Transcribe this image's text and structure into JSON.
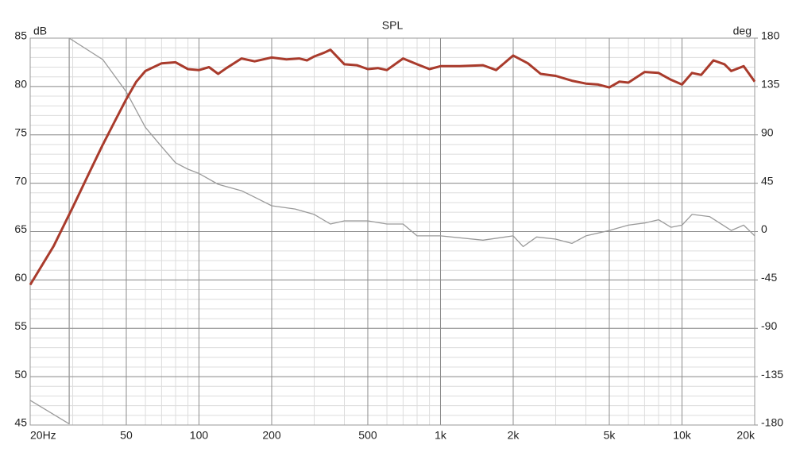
{
  "chart_data": {
    "type": "line",
    "title": "SPL",
    "y_label": "dB",
    "y2_label": "deg",
    "x_scale": "log",
    "grid": true,
    "minor_grid": true,
    "xlim": [
      20,
      20000
    ],
    "ylim": [
      45,
      85
    ],
    "y2lim": [
      -180,
      180
    ],
    "xticks": [
      {
        "value": 20,
        "label": "20Hz"
      },
      50,
      100,
      200,
      500,
      {
        "value": 1000,
        "label": "1k"
      },
      {
        "value": 2000,
        "label": "2k"
      },
      {
        "value": 5000,
        "label": "5k"
      },
      {
        "value": 10000,
        "label": "10k"
      },
      {
        "value": 20000,
        "label": "20k"
      }
    ],
    "yticks": [
      45,
      50,
      55,
      60,
      65,
      70,
      75,
      80,
      85
    ],
    "y2ticks": [
      -180,
      -135,
      -90,
      -45,
      0,
      45,
      90,
      135,
      180
    ],
    "series": [
      {
        "color": "#a93b2c",
        "axis": "y",
        "x": [
          20,
          25,
          30,
          35,
          40,
          45,
          50,
          55,
          60,
          70,
          80,
          90,
          100,
          110,
          120,
          130,
          150,
          170,
          200,
          230,
          260,
          280,
          300,
          330,
          350,
          400,
          450,
          500,
          550,
          600,
          700,
          800,
          900,
          1000,
          1200,
          1500,
          1700,
          2000,
          2300,
          2600,
          3000,
          3500,
          4000,
          4500,
          5000,
          5500,
          6000,
          7000,
          8000,
          9000,
          10000,
          11000,
          12000,
          13500,
          15000,
          16000,
          18000,
          20000
        ],
        "values": [
          59.5,
          63.5,
          67.5,
          71,
          74,
          76.5,
          78.7,
          80.5,
          81.6,
          82.4,
          82.5,
          81.8,
          81.7,
          82.0,
          81.3,
          81.9,
          82.9,
          82.6,
          83.0,
          82.8,
          82.9,
          82.7,
          83.1,
          83.5,
          83.8,
          82.3,
          82.2,
          81.8,
          81.9,
          81.7,
          82.9,
          82.3,
          81.8,
          82.1,
          82.1,
          82.2,
          81.7,
          83.2,
          82.4,
          81.3,
          81.1,
          80.6,
          80.3,
          80.2,
          79.9,
          80.5,
          80.4,
          81.5,
          81.4,
          80.7,
          80.2,
          81.4,
          81.2,
          82.7,
          82.3,
          81.6,
          82.1,
          80.5
        ]
      },
      {
        "color": "#9a9a9a",
        "axis": "y2",
        "x": [
          20,
          29,
          29,
          40,
          50,
          60,
          70,
          80,
          90,
          100,
          120,
          150,
          170,
          200,
          250,
          300,
          350,
          400,
          500,
          600,
          700,
          800,
          1000,
          1500,
          2000,
          2200,
          2500,
          3000,
          3500,
          4000,
          5000,
          6000,
          7000,
          8000,
          9000,
          10000,
          11000,
          13000,
          16000,
          18000,
          20000
        ],
        "values": [
          -157,
          -179,
          180,
          160,
          130,
          97,
          79,
          64,
          58,
          54,
          44,
          38,
          32,
          24,
          21,
          16,
          7,
          10,
          10,
          7,
          7,
          -4,
          -4,
          -8,
          -4,
          -14,
          -5,
          -7,
          -11,
          -4,
          1,
          6,
          8,
          11,
          4,
          6,
          16,
          14,
          1,
          6,
          -4
        ]
      }
    ]
  }
}
